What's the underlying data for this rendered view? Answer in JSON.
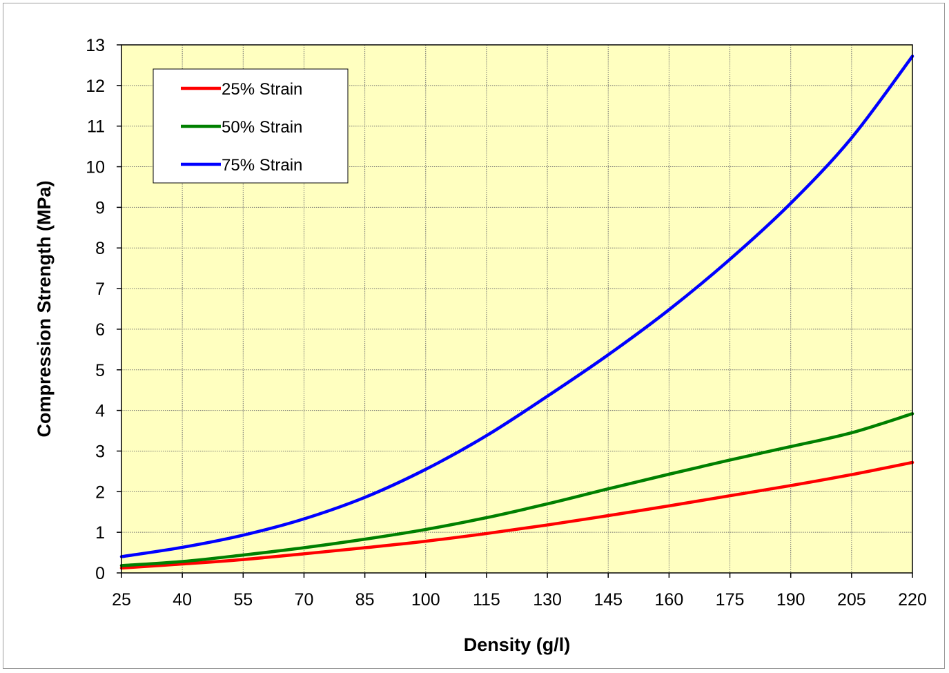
{
  "chart_data": {
    "type": "line",
    "xlabel": "Density (g/l)",
    "ylabel": "Compression Strength (MPa)",
    "xlim": [
      25,
      220
    ],
    "ylim": [
      0,
      13
    ],
    "x_ticks": [
      25,
      40,
      55,
      70,
      85,
      100,
      115,
      130,
      145,
      160,
      175,
      190,
      205,
      220
    ],
    "y_ticks": [
      0,
      1,
      2,
      3,
      4,
      5,
      6,
      7,
      8,
      9,
      10,
      11,
      12,
      13
    ],
    "grid": true,
    "plot_background": "#ffffc0",
    "legend_position": "top-left",
    "series": [
      {
        "name": "25% Strain",
        "color": "#ff0000",
        "x": [
          25,
          40,
          55,
          70,
          85,
          100,
          115,
          130,
          145,
          160,
          175,
          190,
          205,
          220
        ],
        "y": [
          0.12,
          0.22,
          0.33,
          0.47,
          0.62,
          0.78,
          0.97,
          1.18,
          1.41,
          1.65,
          1.9,
          2.15,
          2.42,
          2.72
        ]
      },
      {
        "name": "50% Strain",
        "color": "#008000",
        "x": [
          25,
          40,
          55,
          70,
          85,
          100,
          115,
          130,
          145,
          160,
          175,
          190,
          205,
          220
        ],
        "y": [
          0.18,
          0.28,
          0.44,
          0.62,
          0.83,
          1.07,
          1.36,
          1.7,
          2.07,
          2.43,
          2.78,
          3.11,
          3.45,
          3.92
        ]
      },
      {
        "name": "75% Strain",
        "color": "#0000ff",
        "x": [
          25,
          40,
          55,
          70,
          85,
          100,
          115,
          130,
          145,
          160,
          175,
          190,
          205,
          220
        ],
        "y": [
          0.4,
          0.63,
          0.93,
          1.33,
          1.86,
          2.55,
          3.38,
          4.35,
          5.37,
          6.48,
          7.72,
          9.1,
          10.71,
          12.72
        ]
      }
    ]
  }
}
